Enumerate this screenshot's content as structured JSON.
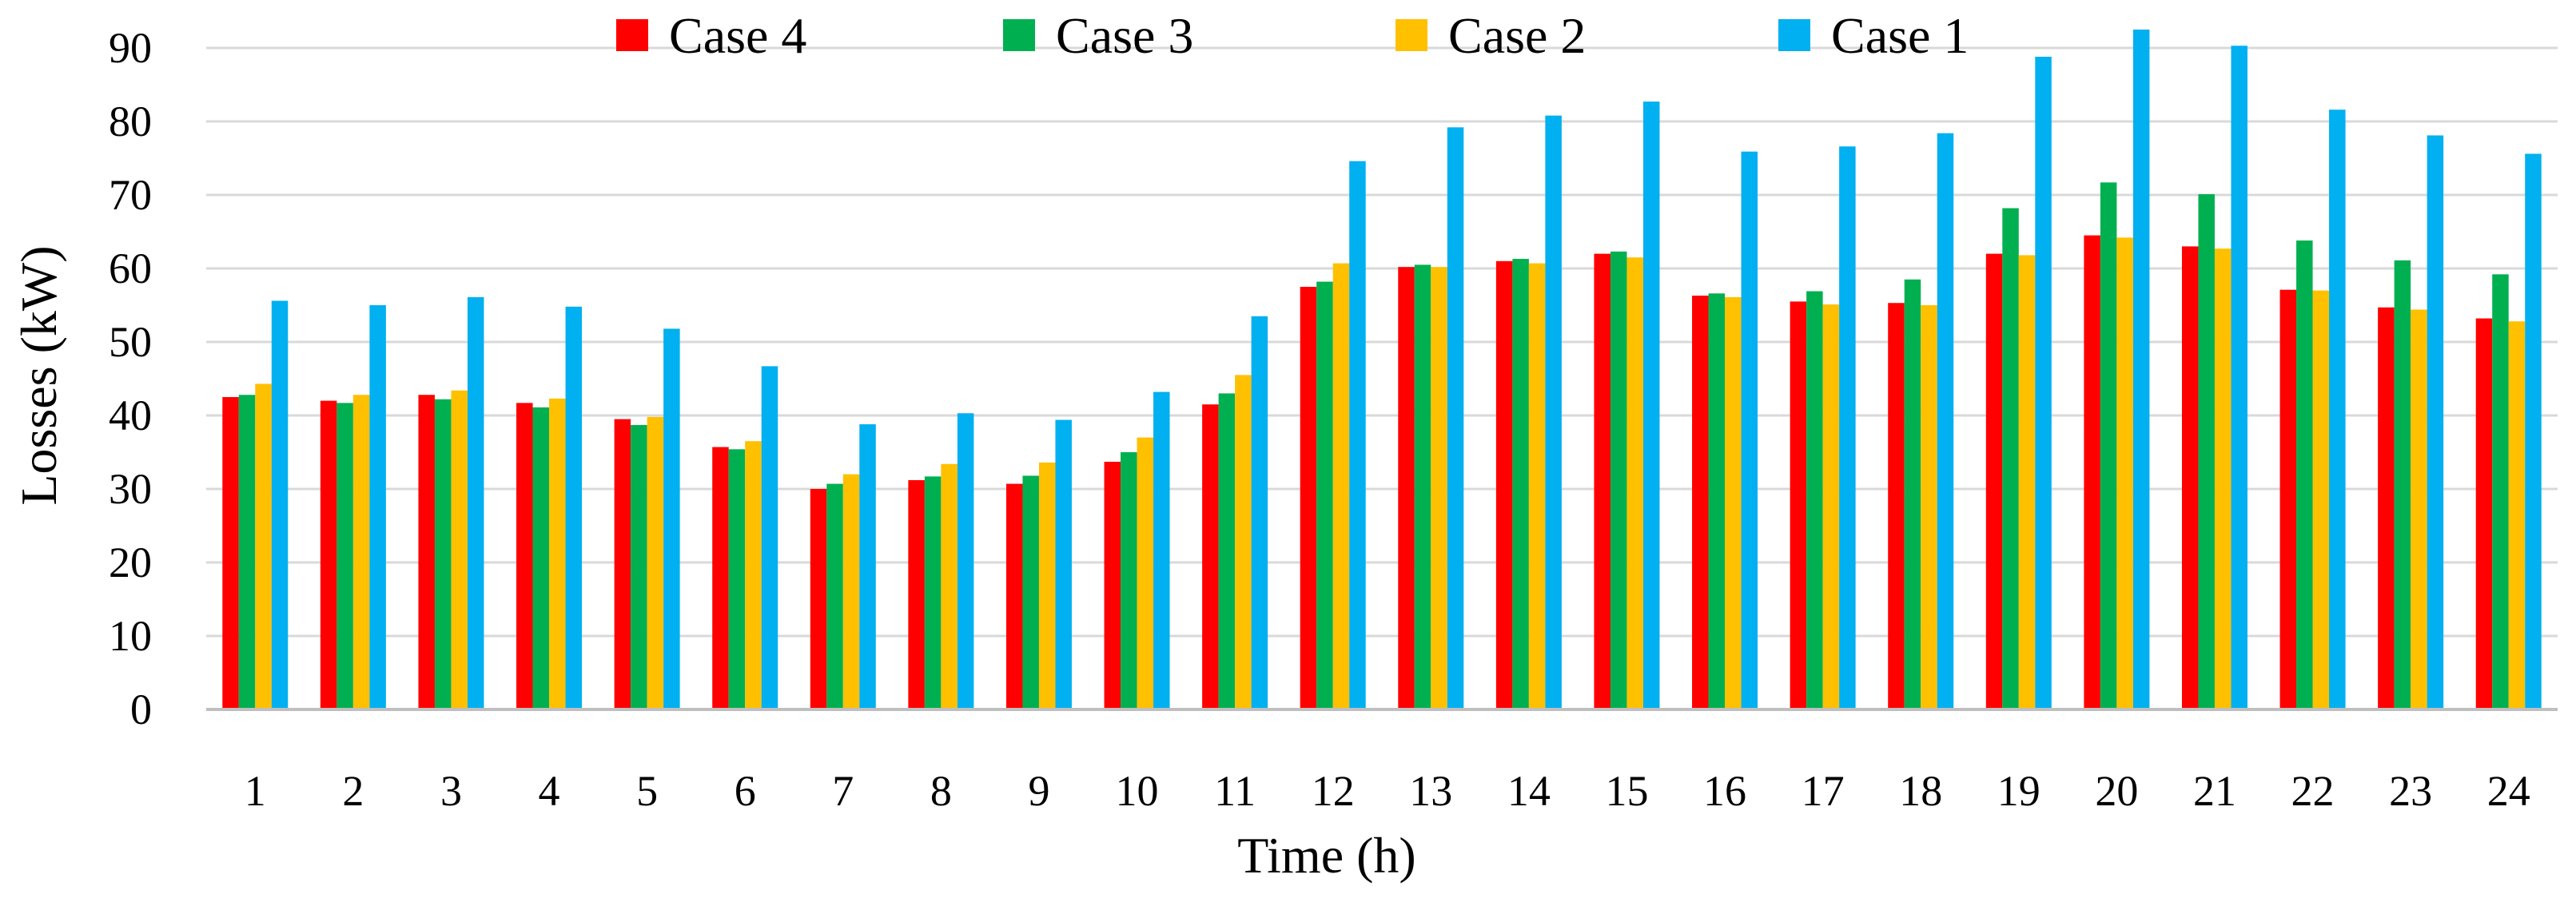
{
  "chart_data": {
    "type": "bar",
    "title": "",
    "xlabel": "Time (h)",
    "ylabel": "Losses (kW)",
    "ylim": [
      0,
      90
    ],
    "yticks": [
      0,
      10,
      20,
      30,
      40,
      50,
      60,
      70,
      80,
      90
    ],
    "grid": true,
    "legend_position": "top-center",
    "categories": [
      "1",
      "2",
      "3",
      "4",
      "5",
      "6",
      "7",
      "8",
      "9",
      "10",
      "11",
      "12",
      "13",
      "14",
      "15",
      "16",
      "17",
      "18",
      "19",
      "20",
      "21",
      "22",
      "23",
      "24"
    ],
    "series": [
      {
        "name": "Case 4",
        "color": "#ff0000",
        "values": [
          42.5,
          42.0,
          42.8,
          41.7,
          39.5,
          35.7,
          30.0,
          31.2,
          30.7,
          33.7,
          41.5,
          57.5,
          60.2,
          61.0,
          62.0,
          56.3,
          55.5,
          55.3,
          62.0,
          64.5,
          63.0,
          57.1,
          54.7,
          53.2
        ]
      },
      {
        "name": "Case 3",
        "color": "#00b050",
        "values": [
          42.8,
          41.7,
          42.2,
          41.1,
          38.7,
          35.4,
          30.7,
          31.7,
          31.8,
          35.0,
          43.0,
          58.2,
          60.5,
          61.3,
          62.3,
          56.6,
          56.9,
          58.5,
          68.2,
          71.7,
          70.1,
          63.8,
          61.1,
          59.2
        ]
      },
      {
        "name": "Case 2",
        "color": "#ffc000",
        "values": [
          44.3,
          42.8,
          43.4,
          42.3,
          39.8,
          36.5,
          32.0,
          33.4,
          33.6,
          37.0,
          45.5,
          60.7,
          60.2,
          60.7,
          61.5,
          56.1,
          55.1,
          55.0,
          61.8,
          64.2,
          62.7,
          57.0,
          54.4,
          52.8
        ]
      },
      {
        "name": "Case 1",
        "color": "#00b0f0",
        "values": [
          55.6,
          55.0,
          56.1,
          54.8,
          51.8,
          46.7,
          38.8,
          40.3,
          39.4,
          43.2,
          53.5,
          74.6,
          79.2,
          80.8,
          82.7,
          75.9,
          76.6,
          78.4,
          88.8,
          92.5,
          90.3,
          81.6,
          78.1,
          75.6
        ]
      }
    ]
  }
}
